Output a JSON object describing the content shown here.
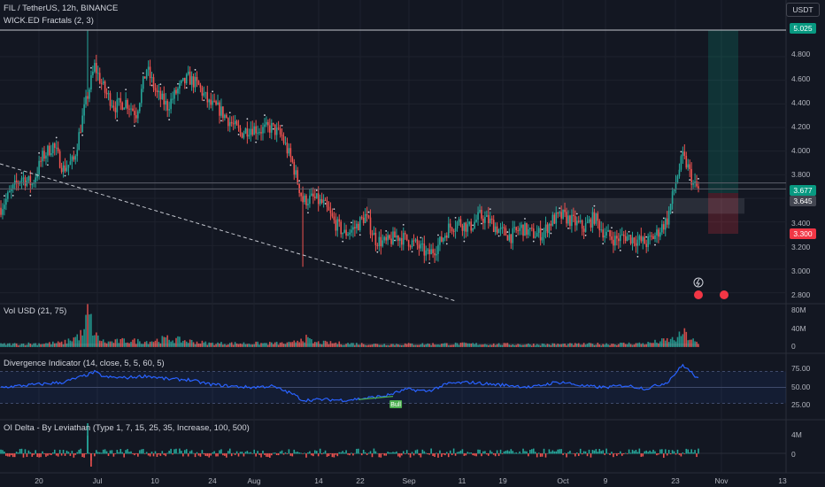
{
  "header": {
    "symbol_line": "FIL / TetherUS, 12h, BINANCE",
    "indicator_line": "WICK.ED Fractals (2, 3)",
    "currency_button": "USDT"
  },
  "panes": {
    "volume_title": "Vol USD (21, 75)",
    "divergence_title": "Divergence Indicator (14, close, 5, 5, 60, 5)",
    "oi_title": "OI Delta - By Leviathan (Type 1, 7, 15, 25, 35, Increase, 100, 500)",
    "bull_label": "Bull"
  },
  "price_tags": {
    "target": "5.025",
    "last": "3.677",
    "entry": "3.645",
    "stop": "3.300"
  },
  "colors": {
    "up": "#26a69a",
    "down": "#ef5350",
    "bg": "#131722",
    "grid": "#1e222d",
    "rsi": "#2962ff",
    "bull": "#4caf50",
    "target_tag": "#089981",
    "stop_tag": "#f23645"
  },
  "axis": {
    "price_ticks": [
      "4.800",
      "4.600",
      "4.400",
      "4.200",
      "4.000",
      "3.800",
      "3.400",
      "3.200",
      "3.000",
      "2.800"
    ],
    "volume_ticks": [
      "80M",
      "40M",
      "0"
    ],
    "rsi_ticks": [
      "75.00",
      "50.00",
      "25.00"
    ],
    "oi_ticks": [
      "4M",
      "0"
    ],
    "date_ticks": [
      "20",
      "Jul",
      "10",
      "24",
      "Aug",
      "14",
      "22",
      "Sep",
      "11",
      "19",
      "Oct",
      "9",
      "23",
      "Nov",
      "13"
    ]
  },
  "chart_data": {
    "type": "candlestick",
    "symbol": "FIL / TetherUS",
    "interval": "12h",
    "exchange": "BINANCE",
    "price_keypoints": [
      [
        0,
        3.52
      ],
      [
        6,
        3.66
      ],
      [
        12,
        3.78
      ],
      [
        18,
        3.72
      ],
      [
        24,
        3.95
      ],
      [
        30,
        4.05
      ],
      [
        36,
        3.85
      ],
      [
        42,
        3.92
      ],
      [
        48,
        4.35
      ],
      [
        54,
        4.72
      ],
      [
        60,
        4.5
      ],
      [
        66,
        4.38
      ],
      [
        72,
        4.42
      ],
      [
        78,
        4.32
      ],
      [
        84,
        4.7
      ],
      [
        90,
        4.48
      ],
      [
        96,
        4.38
      ],
      [
        102,
        4.52
      ],
      [
        108,
        4.62
      ],
      [
        114,
        4.55
      ],
      [
        120,
        4.4
      ],
      [
        126,
        4.35
      ],
      [
        132,
        4.25
      ],
      [
        138,
        4.15
      ],
      [
        144,
        4.2
      ],
      [
        150,
        4.18
      ],
      [
        156,
        4.2
      ],
      [
        162,
        4.12
      ],
      [
        168,
        3.9
      ],
      [
        174,
        3.58
      ],
      [
        180,
        3.6
      ],
      [
        186,
        3.55
      ],
      [
        192,
        3.4
      ],
      [
        198,
        3.3
      ],
      [
        204,
        3.35
      ],
      [
        210,
        3.45
      ],
      [
        216,
        3.25
      ],
      [
        222,
        3.22
      ],
      [
        228,
        3.28
      ],
      [
        234,
        3.25
      ],
      [
        240,
        3.2
      ],
      [
        246,
        3.12
      ],
      [
        252,
        3.2
      ],
      [
        258,
        3.35
      ],
      [
        264,
        3.4
      ],
      [
        270,
        3.35
      ],
      [
        276,
        3.45
      ],
      [
        282,
        3.4
      ],
      [
        288,
        3.32
      ],
      [
        294,
        3.28
      ],
      [
        300,
        3.35
      ],
      [
        306,
        3.3
      ],
      [
        312,
        3.3
      ],
      [
        318,
        3.42
      ],
      [
        324,
        3.45
      ],
      [
        330,
        3.4
      ],
      [
        336,
        3.35
      ],
      [
        342,
        3.44
      ],
      [
        348,
        3.3
      ],
      [
        354,
        3.25
      ],
      [
        360,
        3.28
      ],
      [
        366,
        3.25
      ],
      [
        372,
        3.22
      ],
      [
        378,
        3.3
      ],
      [
        384,
        3.42
      ],
      [
        390,
        3.8
      ],
      [
        393,
        3.95
      ],
      [
        396,
        3.86
      ],
      [
        399,
        3.72
      ],
      [
        402,
        3.677
      ]
    ],
    "last_bar_index": 402,
    "volume_keypoints": [
      [
        0,
        6
      ],
      [
        36,
        9
      ],
      [
        48,
        30
      ],
      [
        50,
        78
      ],
      [
        54,
        26
      ],
      [
        60,
        10
      ],
      [
        72,
        14
      ],
      [
        84,
        12
      ],
      [
        96,
        18
      ],
      [
        120,
        8
      ],
      [
        168,
        8
      ],
      [
        174,
        22
      ],
      [
        180,
        10
      ],
      [
        216,
        6
      ],
      [
        264,
        7
      ],
      [
        300,
        6
      ],
      [
        330,
        6
      ],
      [
        372,
        8
      ],
      [
        390,
        18
      ],
      [
        393,
        32
      ],
      [
        396,
        22
      ],
      [
        402,
        6
      ]
    ],
    "rsi_keypoints": [
      [
        0,
        50
      ],
      [
        18,
        54
      ],
      [
        36,
        58
      ],
      [
        48,
        68
      ],
      [
        54,
        74
      ],
      [
        60,
        66
      ],
      [
        72,
        65
      ],
      [
        84,
        68
      ],
      [
        96,
        63
      ],
      [
        108,
        62
      ],
      [
        120,
        55
      ],
      [
        132,
        52
      ],
      [
        144,
        50
      ],
      [
        156,
        52
      ],
      [
        168,
        40
      ],
      [
        174,
        30
      ],
      [
        186,
        31
      ],
      [
        198,
        30
      ],
      [
        210,
        33
      ],
      [
        222,
        37
      ],
      [
        234,
        47
      ],
      [
        246,
        44
      ],
      [
        258,
        56
      ],
      [
        270,
        58
      ],
      [
        282,
        55
      ],
      [
        294,
        53
      ],
      [
        306,
        50
      ],
      [
        318,
        57
      ],
      [
        324,
        58
      ],
      [
        336,
        52
      ],
      [
        348,
        50
      ],
      [
        360,
        53
      ],
      [
        372,
        48
      ],
      [
        384,
        58
      ],
      [
        390,
        76
      ],
      [
        393,
        85
      ],
      [
        396,
        78
      ],
      [
        402,
        63
      ]
    ],
    "rsi_levels": [
      75,
      50,
      25
    ],
    "price_range": [
      2.73,
      5.07
    ],
    "levels": {
      "target": 5.025,
      "entry": 3.645,
      "stop": 3.3
    },
    "annotations": [
      "Bull"
    ]
  }
}
